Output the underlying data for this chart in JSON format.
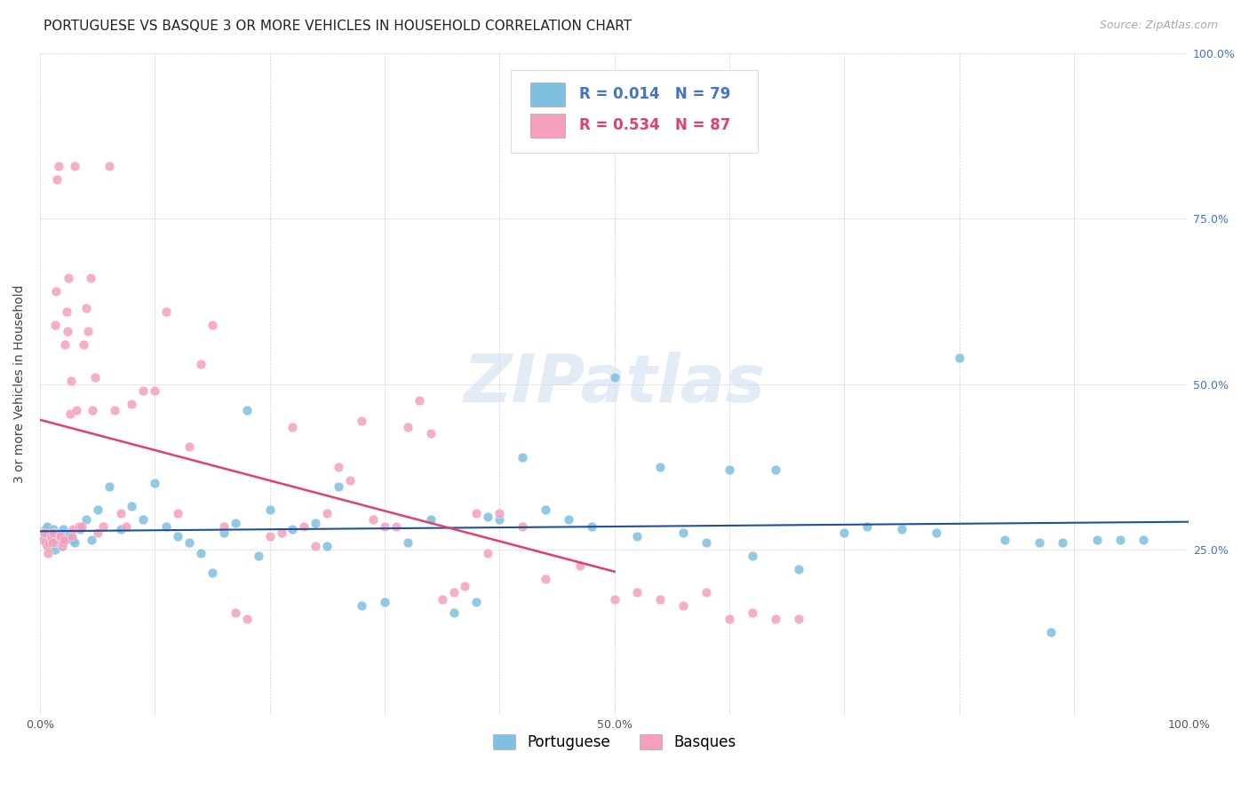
{
  "title": "PORTUGUESE VS BASQUE 3 OR MORE VEHICLES IN HOUSEHOLD CORRELATION CHART",
  "source": "Source: ZipAtlas.com",
  "ylabel": "3 or more Vehicles in Household",
  "portuguese_R": 0.014,
  "portuguese_N": 79,
  "basque_R": 0.534,
  "basque_N": 87,
  "portuguese_color": "#7fbfdf",
  "basque_color": "#f4a0bc",
  "portuguese_line_color": "#1f4fa0",
  "basque_line_color": "#e0406a",
  "watermark_color": "#d0dff0",
  "xlim": [
    0.0,
    1.0
  ],
  "ylim": [
    0.0,
    1.0
  ],
  "xtick_pos": [
    0.0,
    0.1,
    0.2,
    0.3,
    0.4,
    0.5,
    0.6,
    0.7,
    0.8,
    0.9,
    1.0
  ],
  "xtick_labels": [
    "0.0%",
    "",
    "",
    "",
    "",
    "50.0%",
    "",
    "",
    "",
    "",
    "100.0%"
  ],
  "ytick_pos": [
    0.0,
    0.25,
    0.5,
    0.75,
    1.0
  ],
  "ytick_labels_right": [
    "",
    "25.0%",
    "50.0%",
    "75.0%",
    "100.0%"
  ],
  "title_fontsize": 11,
  "source_fontsize": 9,
  "axis_fontsize": 9,
  "label_fontsize": 10,
  "legend_fontsize": 12,
  "port_x": [
    0.003,
    0.004,
    0.005,
    0.006,
    0.007,
    0.008,
    0.009,
    0.01,
    0.011,
    0.012,
    0.013,
    0.014,
    0.015,
    0.016,
    0.017,
    0.018,
    0.019,
    0.02,
    0.022,
    0.024,
    0.026,
    0.028,
    0.03,
    0.035,
    0.04,
    0.045,
    0.05,
    0.06,
    0.07,
    0.08,
    0.09,
    0.1,
    0.11,
    0.12,
    0.13,
    0.14,
    0.15,
    0.16,
    0.17,
    0.18,
    0.19,
    0.2,
    0.22,
    0.24,
    0.25,
    0.26,
    0.28,
    0.3,
    0.32,
    0.34,
    0.36,
    0.38,
    0.39,
    0.4,
    0.42,
    0.44,
    0.46,
    0.48,
    0.5,
    0.52,
    0.54,
    0.56,
    0.58,
    0.6,
    0.62,
    0.64,
    0.66,
    0.7,
    0.72,
    0.75,
    0.78,
    0.8,
    0.84,
    0.87,
    0.89,
    0.92,
    0.94,
    0.96,
    0.88
  ],
  "port_y": [
    0.275,
    0.265,
    0.28,
    0.285,
    0.27,
    0.255,
    0.26,
    0.275,
    0.265,
    0.28,
    0.25,
    0.26,
    0.27,
    0.275,
    0.265,
    0.26,
    0.255,
    0.28,
    0.265,
    0.27,
    0.275,
    0.265,
    0.26,
    0.28,
    0.295,
    0.265,
    0.31,
    0.345,
    0.28,
    0.315,
    0.295,
    0.35,
    0.285,
    0.27,
    0.26,
    0.245,
    0.215,
    0.275,
    0.29,
    0.46,
    0.24,
    0.31,
    0.28,
    0.29,
    0.255,
    0.345,
    0.165,
    0.17,
    0.26,
    0.295,
    0.155,
    0.17,
    0.3,
    0.295,
    0.39,
    0.31,
    0.295,
    0.285,
    0.51,
    0.27,
    0.375,
    0.275,
    0.26,
    0.37,
    0.24,
    0.37,
    0.22,
    0.275,
    0.285,
    0.28,
    0.275,
    0.54,
    0.265,
    0.26,
    0.26,
    0.265,
    0.265,
    0.265,
    0.125
  ],
  "basq_x": [
    0.003,
    0.004,
    0.005,
    0.006,
    0.007,
    0.008,
    0.009,
    0.01,
    0.011,
    0.012,
    0.013,
    0.014,
    0.015,
    0.016,
    0.017,
    0.018,
    0.019,
    0.02,
    0.021,
    0.022,
    0.023,
    0.024,
    0.025,
    0.026,
    0.027,
    0.028,
    0.029,
    0.03,
    0.032,
    0.034,
    0.036,
    0.038,
    0.04,
    0.042,
    0.044,
    0.046,
    0.048,
    0.05,
    0.055,
    0.06,
    0.065,
    0.07,
    0.075,
    0.08,
    0.09,
    0.1,
    0.11,
    0.12,
    0.13,
    0.14,
    0.15,
    0.16,
    0.17,
    0.18,
    0.2,
    0.21,
    0.22,
    0.23,
    0.24,
    0.25,
    0.26,
    0.27,
    0.28,
    0.29,
    0.3,
    0.31,
    0.32,
    0.33,
    0.34,
    0.35,
    0.36,
    0.37,
    0.38,
    0.39,
    0.4,
    0.42,
    0.44,
    0.47,
    0.5,
    0.52,
    0.54,
    0.56,
    0.58,
    0.6,
    0.62,
    0.64,
    0.66
  ],
  "basq_y": [
    0.265,
    0.275,
    0.26,
    0.255,
    0.245,
    0.26,
    0.27,
    0.265,
    0.26,
    0.275,
    0.59,
    0.64,
    0.81,
    0.83,
    0.27,
    0.27,
    0.255,
    0.26,
    0.265,
    0.56,
    0.61,
    0.58,
    0.66,
    0.455,
    0.505,
    0.27,
    0.28,
    0.83,
    0.46,
    0.285,
    0.285,
    0.56,
    0.615,
    0.58,
    0.66,
    0.46,
    0.51,
    0.275,
    0.285,
    0.83,
    0.46,
    0.305,
    0.285,
    0.47,
    0.49,
    0.49,
    0.61,
    0.305,
    0.405,
    0.53,
    0.59,
    0.285,
    0.155,
    0.145,
    0.27,
    0.275,
    0.435,
    0.285,
    0.255,
    0.305,
    0.375,
    0.355,
    0.445,
    0.295,
    0.285,
    0.285,
    0.435,
    0.475,
    0.425,
    0.175,
    0.185,
    0.195,
    0.305,
    0.245,
    0.305,
    0.285,
    0.205,
    0.225,
    0.175,
    0.185,
    0.175,
    0.165,
    0.185,
    0.145,
    0.155,
    0.145,
    0.145
  ]
}
